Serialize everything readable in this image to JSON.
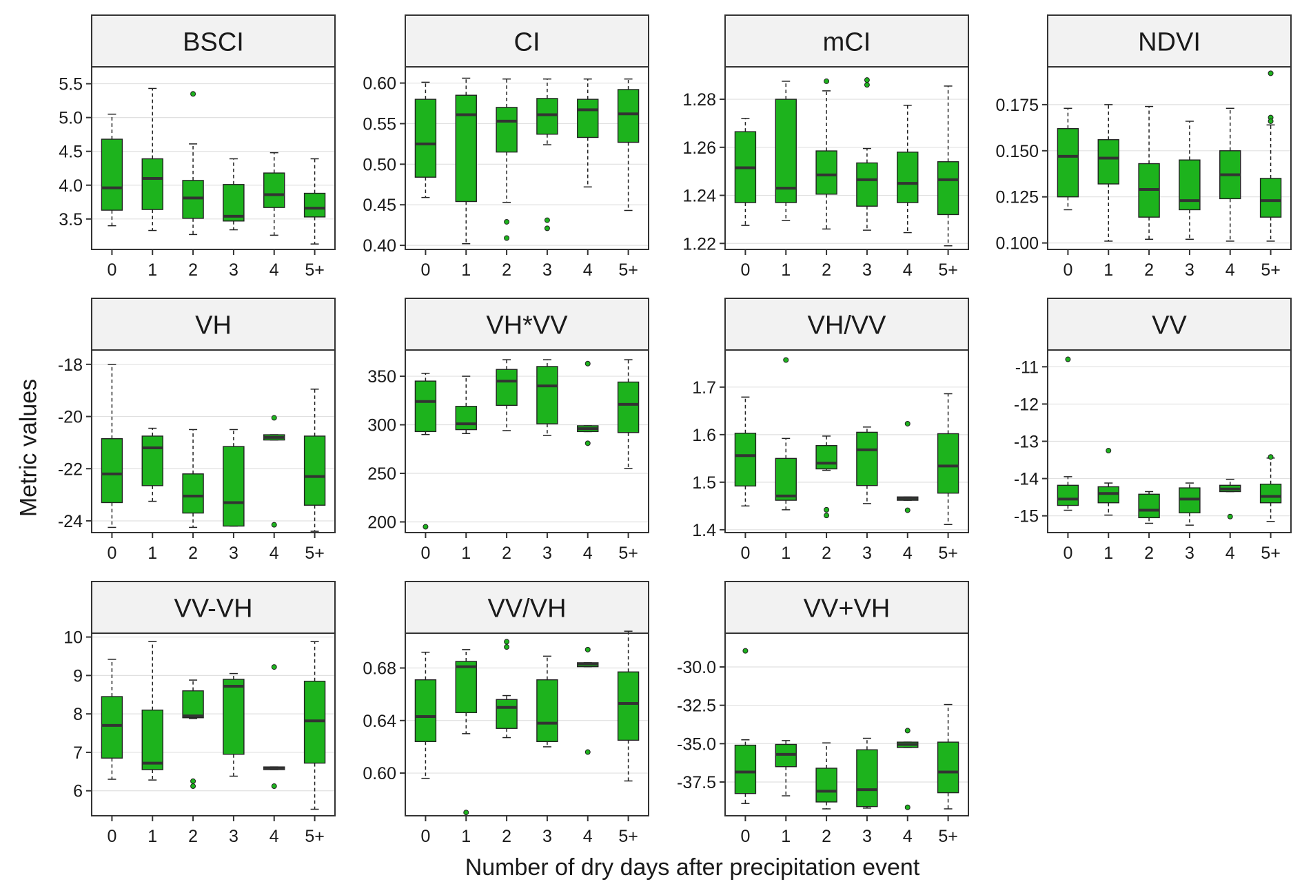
{
  "figure": {
    "xlabel": "Number of dry days after precipitation event",
    "ylabel": "Metric values"
  },
  "colors": {
    "box_fill": "#1db31d",
    "median": "#333333",
    "strip_fill": "#f2f2f2",
    "grid": "#e0e0e0"
  },
  "chart_data": [
    {
      "type": "box",
      "title": "BSCI",
      "categories": [
        "0",
        "1",
        "2",
        "3",
        "4",
        "5+"
      ],
      "ylim": [
        3.05,
        5.75
      ],
      "yticks": [
        "3.5",
        "4.0",
        "4.5",
        "5.0",
        "5.5"
      ],
      "boxes": [
        {
          "min": 3.4,
          "q1": 3.63,
          "median": 3.96,
          "q3": 4.68,
          "max": 5.05,
          "outliers": []
        },
        {
          "min": 3.33,
          "q1": 3.64,
          "median": 4.1,
          "q3": 4.39,
          "max": 5.43,
          "outliers": []
        },
        {
          "min": 3.27,
          "q1": 3.51,
          "median": 3.81,
          "q3": 4.07,
          "max": 4.61,
          "outliers": [
            5.35
          ]
        },
        {
          "min": 3.34,
          "q1": 3.47,
          "median": 3.54,
          "q3": 4.01,
          "max": 4.39,
          "outliers": []
        },
        {
          "min": 3.26,
          "q1": 3.67,
          "median": 3.86,
          "q3": 4.18,
          "max": 4.48,
          "outliers": []
        },
        {
          "min": 3.13,
          "q1": 3.53,
          "median": 3.66,
          "q3": 3.88,
          "max": 4.39,
          "outliers": []
        }
      ]
    },
    {
      "type": "box",
      "title": "CI",
      "categories": [
        "0",
        "1",
        "2",
        "3",
        "4",
        "5+"
      ],
      "ylim": [
        0.395,
        0.62
      ],
      "yticks": [
        "0.40",
        "0.45",
        "0.50",
        "0.55",
        "0.60"
      ],
      "boxes": [
        {
          "min": 0.459,
          "q1": 0.484,
          "median": 0.525,
          "q3": 0.58,
          "max": 0.601,
          "outliers": []
        },
        {
          "min": 0.402,
          "q1": 0.454,
          "median": 0.561,
          "q3": 0.585,
          "max": 0.606,
          "outliers": []
        },
        {
          "min": 0.453,
          "q1": 0.515,
          "median": 0.553,
          "q3": 0.57,
          "max": 0.605,
          "outliers": [
            0.429,
            0.409
          ]
        },
        {
          "min": 0.524,
          "q1": 0.537,
          "median": 0.561,
          "q3": 0.581,
          "max": 0.605,
          "outliers": [
            0.431,
            0.421
          ]
        },
        {
          "min": 0.472,
          "q1": 0.533,
          "median": 0.567,
          "q3": 0.58,
          "max": 0.605,
          "outliers": []
        },
        {
          "min": 0.443,
          "q1": 0.527,
          "median": 0.562,
          "q3": 0.592,
          "max": 0.605,
          "outliers": []
        }
      ]
    },
    {
      "type": "box",
      "title": "mCI",
      "categories": [
        "0",
        "1",
        "2",
        "3",
        "4",
        "5+"
      ],
      "ylim": [
        1.2175,
        1.2935
      ],
      "yticks": [
        "1.22",
        "1.24",
        "1.26",
        "1.28"
      ],
      "boxes": [
        {
          "min": 1.2275,
          "q1": 1.237,
          "median": 1.2515,
          "q3": 1.2665,
          "max": 1.272,
          "outliers": []
        },
        {
          "min": 1.2295,
          "q1": 1.237,
          "median": 1.243,
          "q3": 1.28,
          "max": 1.2875,
          "outliers": []
        },
        {
          "min": 1.226,
          "q1": 1.2405,
          "median": 1.2485,
          "q3": 1.2585,
          "max": 1.2835,
          "outliers": [
            1.2875
          ]
        },
        {
          "min": 1.2255,
          "q1": 1.2355,
          "median": 1.2465,
          "q3": 1.2535,
          "max": 1.2595,
          "outliers": [
            1.288,
            1.286
          ]
        },
        {
          "min": 1.2245,
          "q1": 1.237,
          "median": 1.245,
          "q3": 1.258,
          "max": 1.2775,
          "outliers": []
        },
        {
          "min": 1.219,
          "q1": 1.232,
          "median": 1.2465,
          "q3": 1.254,
          "max": 1.2855,
          "outliers": []
        }
      ]
    },
    {
      "type": "box",
      "title": "NDVI",
      "categories": [
        "0",
        "1",
        "2",
        "3",
        "4",
        "5+"
      ],
      "ylim": [
        0.0965,
        0.1955
      ],
      "yticks": [
        "0.100",
        "0.125",
        "0.150",
        "0.175"
      ],
      "boxes": [
        {
          "min": 0.118,
          "q1": 0.125,
          "median": 0.147,
          "q3": 0.162,
          "max": 0.173,
          "outliers": []
        },
        {
          "min": 0.101,
          "q1": 0.132,
          "median": 0.146,
          "q3": 0.156,
          "max": 0.175,
          "outliers": []
        },
        {
          "min": 0.102,
          "q1": 0.114,
          "median": 0.129,
          "q3": 0.143,
          "max": 0.174,
          "outliers": []
        },
        {
          "min": 0.102,
          "q1": 0.118,
          "median": 0.123,
          "q3": 0.145,
          "max": 0.166,
          "outliers": []
        },
        {
          "min": 0.101,
          "q1": 0.124,
          "median": 0.137,
          "q3": 0.15,
          "max": 0.173,
          "outliers": []
        },
        {
          "min": 0.101,
          "q1": 0.114,
          "median": 0.123,
          "q3": 0.135,
          "max": 0.164,
          "outliers": [
            0.192,
            0.168,
            0.166
          ]
        }
      ]
    },
    {
      "type": "box",
      "title": "VH",
      "categories": [
        "0",
        "1",
        "2",
        "3",
        "4",
        "5+"
      ],
      "ylim": [
        -24.45,
        -17.45
      ],
      "yticks": [
        "-24",
        "-22",
        "-20",
        "-18"
      ],
      "boxes": [
        {
          "min": -24.25,
          "q1": -23.3,
          "median": -22.2,
          "q3": -20.85,
          "max": -18.0,
          "outliers": []
        },
        {
          "min": -23.25,
          "q1": -22.65,
          "median": -21.2,
          "q3": -20.75,
          "max": -20.45,
          "outliers": []
        },
        {
          "min": -24.25,
          "q1": -23.7,
          "median": -23.05,
          "q3": -22.2,
          "max": -20.5,
          "outliers": []
        },
        {
          "min": -24.2,
          "q1": -24.2,
          "median": -23.3,
          "q3": -21.15,
          "max": -20.5,
          "outliers": []
        },
        {
          "min": -20.9,
          "q1": -20.9,
          "median": -20.8,
          "q3": -20.7,
          "max": -20.7,
          "outliers": [
            -20.05,
            -24.15
          ]
        },
        {
          "min": -24.4,
          "q1": -23.4,
          "median": -22.3,
          "q3": -20.75,
          "max": -18.95,
          "outliers": []
        }
      ]
    },
    {
      "type": "box",
      "title": "VH*VV",
      "categories": [
        "0",
        "1",
        "2",
        "3",
        "4",
        "5+"
      ],
      "ylim": [
        189,
        377
      ],
      "yticks": [
        "200",
        "250",
        "300",
        "350"
      ],
      "boxes": [
        {
          "min": 290,
          "q1": 293,
          "median": 324,
          "q3": 345,
          "max": 353,
          "outliers": [
            195
          ]
        },
        {
          "min": 291,
          "q1": 295,
          "median": 301,
          "q3": 319,
          "max": 350,
          "outliers": []
        },
        {
          "min": 294,
          "q1": 320,
          "median": 345,
          "q3": 357,
          "max": 367,
          "outliers": []
        },
        {
          "min": 289,
          "q1": 301,
          "median": 340,
          "q3": 360,
          "max": 367,
          "outliers": []
        },
        {
          "min": 293,
          "q1": 293,
          "median": 296,
          "q3": 299,
          "max": 299,
          "outliers": [
            363,
            281
          ]
        },
        {
          "min": 255,
          "q1": 292,
          "median": 321,
          "q3": 344,
          "max": 367,
          "outliers": []
        }
      ]
    },
    {
      "type": "box",
      "title": "VH/VV",
      "categories": [
        "0",
        "1",
        "2",
        "3",
        "4",
        "5+"
      ],
      "ylim": [
        1.394,
        1.778
      ],
      "yticks": [
        "1.4",
        "1.5",
        "1.6",
        "1.7"
      ],
      "boxes": [
        {
          "min": 1.45,
          "q1": 1.492,
          "median": 1.556,
          "q3": 1.603,
          "max": 1.679,
          "outliers": []
        },
        {
          "min": 1.442,
          "q1": 1.462,
          "median": 1.471,
          "q3": 1.55,
          "max": 1.592,
          "outliers": [
            1.757
          ]
        },
        {
          "min": 1.525,
          "q1": 1.528,
          "median": 1.54,
          "q3": 1.577,
          "max": 1.597,
          "outliers": [
            1.442,
            1.43
          ]
        },
        {
          "min": 1.455,
          "q1": 1.493,
          "median": 1.568,
          "q3": 1.605,
          "max": 1.616,
          "outliers": []
        },
        {
          "min": 1.462,
          "q1": 1.462,
          "median": 1.466,
          "q3": 1.469,
          "max": 1.469,
          "outliers": [
            1.623,
            1.441
          ]
        },
        {
          "min": 1.411,
          "q1": 1.477,
          "median": 1.534,
          "q3": 1.602,
          "max": 1.686,
          "outliers": []
        }
      ]
    },
    {
      "type": "box",
      "title": "VV",
      "categories": [
        "0",
        "1",
        "2",
        "3",
        "4",
        "5+"
      ],
      "ylim": [
        -15.45,
        -10.55
      ],
      "yticks": [
        "-15",
        "-14",
        "-13",
        "-12",
        "-11"
      ],
      "boxes": [
        {
          "min": -14.85,
          "q1": -14.72,
          "median": -14.55,
          "q3": -14.18,
          "max": -13.95,
          "outliers": [
            -10.8
          ]
        },
        {
          "min": -14.98,
          "q1": -14.65,
          "median": -14.4,
          "q3": -14.22,
          "max": -14.12,
          "outliers": [
            -13.25
          ]
        },
        {
          "min": -15.2,
          "q1": -15.05,
          "median": -14.85,
          "q3": -14.42,
          "max": -14.35,
          "outliers": []
        },
        {
          "min": -15.25,
          "q1": -14.92,
          "median": -14.55,
          "q3": -14.25,
          "max": -14.12,
          "outliers": []
        },
        {
          "min": -14.35,
          "q1": -14.35,
          "median": -14.28,
          "q3": -14.18,
          "max": -14.02,
          "outliers": [
            -15.02
          ]
        },
        {
          "min": -15.15,
          "q1": -14.65,
          "median": -14.48,
          "q3": -14.15,
          "max": -13.45,
          "outliers": [
            -13.42
          ]
        }
      ]
    },
    {
      "type": "box",
      "title": "VV-VH",
      "categories": [
        "0",
        "1",
        "2",
        "3",
        "4",
        "5+"
      ],
      "ylim": [
        5.35,
        10.1
      ],
      "yticks": [
        "6",
        "7",
        "8",
        "9",
        "10"
      ],
      "boxes": [
        {
          "min": 6.3,
          "q1": 6.85,
          "median": 7.7,
          "q3": 8.45,
          "max": 9.42,
          "outliers": []
        },
        {
          "min": 6.28,
          "q1": 6.55,
          "median": 6.72,
          "q3": 8.1,
          "max": 9.88,
          "outliers": []
        },
        {
          "min": 7.88,
          "q1": 7.9,
          "median": 7.95,
          "q3": 8.6,
          "max": 8.88,
          "outliers": [
            6.25,
            6.12
          ]
        },
        {
          "min": 6.38,
          "q1": 6.95,
          "median": 8.72,
          "q3": 8.9,
          "max": 9.05,
          "outliers": []
        },
        {
          "min": 6.55,
          "q1": 6.55,
          "median": 6.58,
          "q3": 6.62,
          "max": 6.62,
          "outliers": [
            9.22,
            6.12
          ]
        },
        {
          "min": 5.52,
          "q1": 6.72,
          "median": 7.82,
          "q3": 8.85,
          "max": 9.88,
          "outliers": []
        }
      ]
    },
    {
      "type": "box",
      "title": "VV/VH",
      "categories": [
        "0",
        "1",
        "2",
        "3",
        "4",
        "5+"
      ],
      "ylim": [
        0.5675,
        0.7065
      ],
      "yticks": [
        "0.60",
        "0.64",
        "0.68"
      ],
      "boxes": [
        {
          "min": 0.596,
          "q1": 0.624,
          "median": 0.643,
          "q3": 0.671,
          "max": 0.692,
          "outliers": []
        },
        {
          "min": 0.63,
          "q1": 0.646,
          "median": 0.681,
          "q3": 0.685,
          "max": 0.694,
          "outliers": [
            0.57
          ]
        },
        {
          "min": 0.627,
          "q1": 0.634,
          "median": 0.65,
          "q3": 0.656,
          "max": 0.659,
          "outliers": [
            0.7,
            0.696
          ]
        },
        {
          "min": 0.62,
          "q1": 0.624,
          "median": 0.638,
          "q3": 0.671,
          "max": 0.689,
          "outliers": []
        },
        {
          "min": 0.681,
          "q1": 0.681,
          "median": 0.683,
          "q3": 0.684,
          "max": 0.684,
          "outliers": [
            0.694,
            0.616
          ]
        },
        {
          "min": 0.594,
          "q1": 0.625,
          "median": 0.653,
          "q3": 0.677,
          "max": 0.708,
          "outliers": []
        }
      ]
    },
    {
      "type": "box",
      "title": "VV+VH",
      "categories": [
        "0",
        "1",
        "2",
        "3",
        "4",
        "5+"
      ],
      "ylim": [
        -39.7,
        -27.8
      ],
      "yticks": [
        "-37.5",
        "-35.0",
        "-32.5",
        "-30.0"
      ],
      "boxes": [
        {
          "min": -38.9,
          "q1": -38.25,
          "median": -36.85,
          "q3": -35.1,
          "max": -34.75,
          "outliers": [
            -28.95
          ]
        },
        {
          "min": -38.4,
          "q1": -36.5,
          "median": -35.7,
          "q3": -35.05,
          "max": -34.8,
          "outliers": []
        },
        {
          "min": -39.25,
          "q1": -38.8,
          "median": -38.1,
          "q3": -36.6,
          "max": -34.95,
          "outliers": []
        },
        {
          "min": -39.2,
          "q1": -39.1,
          "median": -38.0,
          "q3": -35.4,
          "max": -34.65,
          "outliers": []
        },
        {
          "min": -35.25,
          "q1": -35.25,
          "median": -35.05,
          "q3": -34.9,
          "max": -34.9,
          "outliers": [
            -34.15,
            -39.15
          ]
        },
        {
          "min": -39.25,
          "q1": -38.2,
          "median": -36.85,
          "q3": -34.9,
          "max": -32.45,
          "outliers": []
        }
      ]
    }
  ]
}
